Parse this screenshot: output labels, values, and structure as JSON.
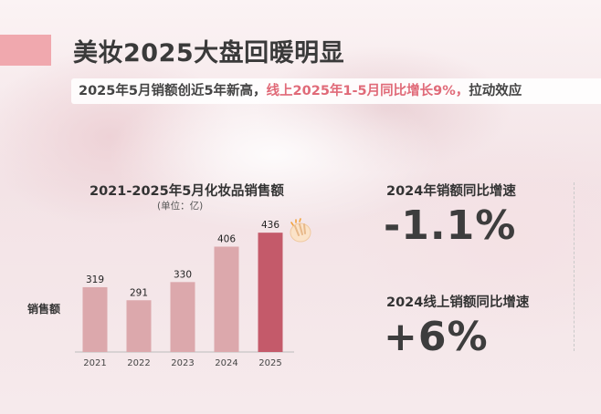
{
  "slide": {
    "title": "美妆2025大盘回暖明显",
    "subtitle_part1": "2025年5月销额创近5年新高，",
    "subtitle_highlight": "线上2025年1-5月同比增长9%，",
    "subtitle_part2": "拉动效应"
  },
  "stats": [
    {
      "label": "2024年销额同比增速",
      "value": "-1.1%"
    },
    {
      "label": "2024线上销额同比增速",
      "value": "+6%"
    }
  ],
  "colors": {
    "bar": "#dca8ac",
    "bar_highlight": "#c45a6a",
    "accent": "#f0a8ae",
    "highlight_text": "#e06a78"
  },
  "chart_data": {
    "type": "bar",
    "title": "2021-2025年5月化妆品销售额",
    "unit": "(单位：亿)",
    "ylabel": "销售额",
    "xlabel": "",
    "categories": [
      "2021",
      "2022",
      "2023",
      "2024",
      "2025"
    ],
    "values": [
      319,
      291,
      330,
      406,
      436
    ],
    "highlight_index": 4,
    "ylim": [
      180,
      450
    ],
    "grid": false
  }
}
